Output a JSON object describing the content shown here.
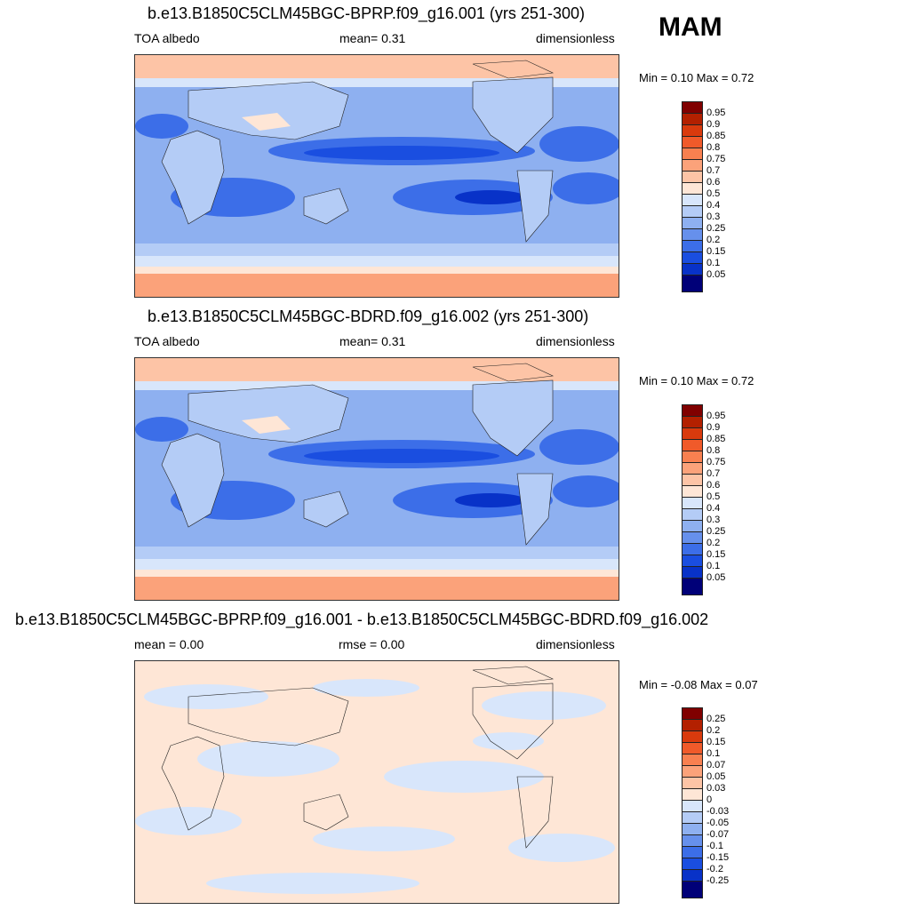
{
  "season": "MAM",
  "panels": [
    {
      "title": "b.e13.B1850C5CLM45BGC-BPRP.f09_g16.001 (yrs 251-300)",
      "left_label": "TOA albedo",
      "center_label": "mean=   0.31",
      "right_label": "dimensionless",
      "minmax": "Min =    0.10 Max =    0.72",
      "colorbar_labels": [
        "0.95",
        "0.9",
        "0.85",
        "0.8",
        "0.75",
        "0.7",
        "0.6",
        "0.5",
        "0.4",
        "0.3",
        "0.25",
        "0.2",
        "0.15",
        "0.1",
        "0.05"
      ]
    },
    {
      "title": "b.e13.B1850C5CLM45BGC-BDRD.f09_g16.002 (yrs 251-300)",
      "left_label": "TOA albedo",
      "center_label": "mean=   0.31",
      "right_label": "dimensionless",
      "minmax": "Min =    0.10 Max =    0.72",
      "colorbar_labels": [
        "0.95",
        "0.9",
        "0.85",
        "0.8",
        "0.75",
        "0.7",
        "0.6",
        "0.5",
        "0.4",
        "0.3",
        "0.25",
        "0.2",
        "0.15",
        "0.1",
        "0.05"
      ]
    },
    {
      "title": "b.e13.B1850C5CLM45BGC-BPRP.f09_g16.001 - b.e13.B1850C5CLM45BGC-BDRD.f09_g16.002",
      "left_label": "mean =   0.00",
      "center_label": "rmse =   0.00",
      "right_label": "dimensionless",
      "minmax": "Min =  -0.08 Max =    0.07",
      "colorbar_labels": [
        "0.25",
        "0.2",
        "0.15",
        "0.1",
        "0.07",
        "0.05",
        "0.03",
        "0",
        "-0.03",
        "-0.05",
        "-0.07",
        "-0.1",
        "-0.15",
        "-0.2",
        "-0.25"
      ]
    }
  ],
  "colors": {
    "scale": [
      "#800000",
      "#b32000",
      "#d93a0d",
      "#f05a2a",
      "#f88050",
      "#fba27a",
      "#fdc4a6",
      "#fee6d6",
      "#d8e6fb",
      "#b4ccf6",
      "#8eb0f0",
      "#6690ec",
      "#3c6ee8",
      "#1a4ee0",
      "#0832c8",
      "#001a98",
      "#000078"
    ]
  }
}
